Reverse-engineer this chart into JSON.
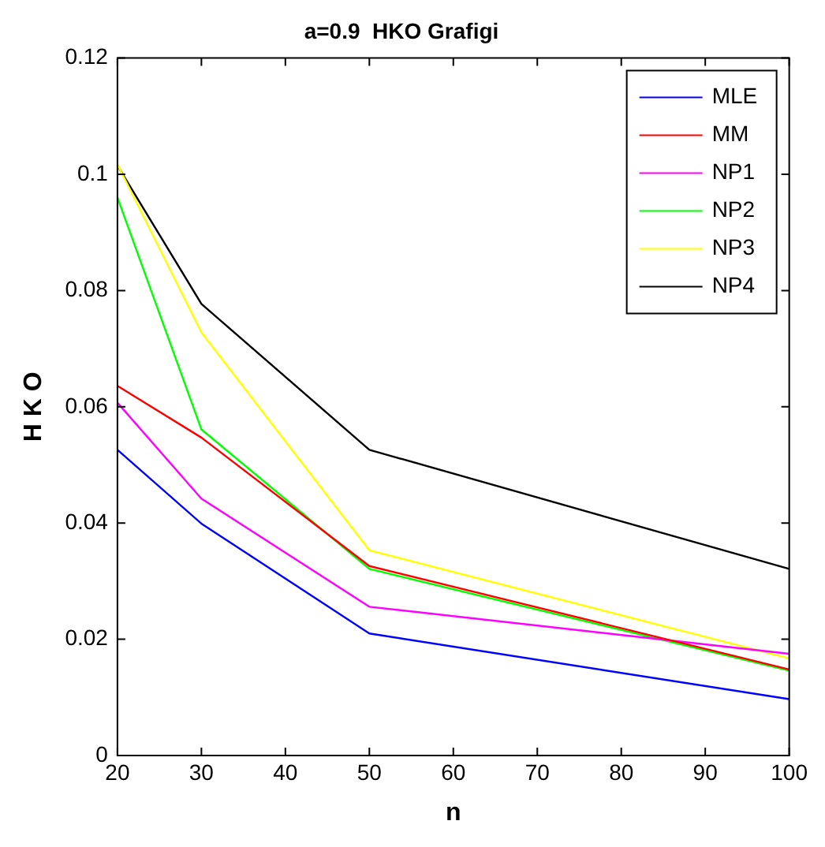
{
  "chart_data": {
    "type": "line",
    "title": "a=0.9  HKO Grafigi",
    "xlabel": "n",
    "ylabel": "H K O",
    "x": [
      20,
      30,
      50,
      100
    ],
    "series": [
      {
        "name": "MLE",
        "color": "#0000ff",
        "values": [
          0.0526,
          0.0399,
          0.021,
          0.0097
        ]
      },
      {
        "name": "MM",
        "color": "#ff0000",
        "values": [
          0.0636,
          0.0547,
          0.0326,
          0.0148
        ]
      },
      {
        "name": "NP1",
        "color": "#ff00ff",
        "values": [
          0.0607,
          0.0442,
          0.0256,
          0.0175
        ]
      },
      {
        "name": "NP2",
        "color": "#00ff00",
        "values": [
          0.096,
          0.0561,
          0.0321,
          0.0146
        ]
      },
      {
        "name": "NP3",
        "color": "#ffff00",
        "values": [
          0.1017,
          0.0728,
          0.0353,
          0.0167
        ]
      },
      {
        "name": "NP4",
        "color": "#000000",
        "values": [
          0.1015,
          0.0777,
          0.0526,
          0.0321
        ]
      }
    ],
    "xlim": [
      20,
      100
    ],
    "xticks": [
      20,
      30,
      40,
      50,
      60,
      70,
      80,
      90,
      100
    ],
    "ylim": [
      0,
      0.12
    ],
    "yticks": [
      0,
      0.02,
      0.04,
      0.06,
      0.08,
      0.1,
      0.12
    ],
    "grid": false,
    "legend": "top right",
    "marker": "none",
    "line_style": "solid"
  }
}
